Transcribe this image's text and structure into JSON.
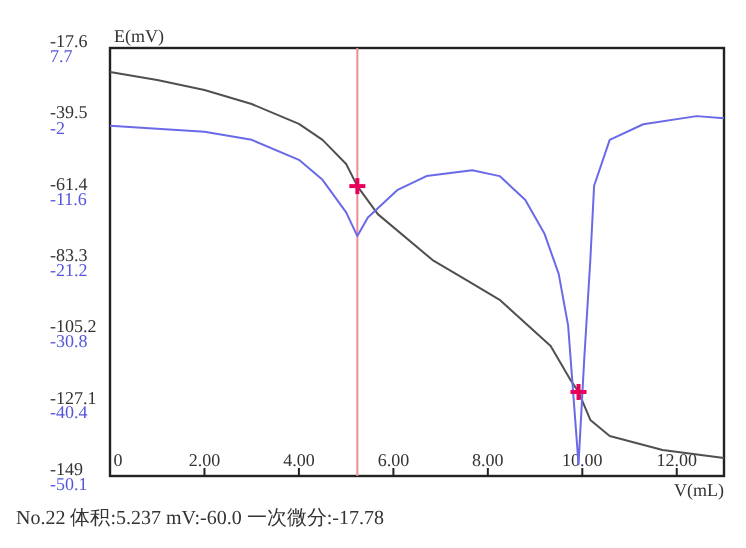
{
  "chart_data": {
    "type": "line",
    "xlabel": "V(mL)",
    "ylabel": "E(mV)",
    "xlim": [
      0,
      13
    ],
    "xticks": [
      {
        "value": 0,
        "label": "0"
      },
      {
        "value": 2,
        "label": "2.00"
      },
      {
        "value": 4,
        "label": "4.00"
      },
      {
        "value": 6,
        "label": "6.00"
      },
      {
        "value": 8,
        "label": "8.00"
      },
      {
        "value": 10,
        "label": "10.00"
      },
      {
        "value": 12,
        "label": "12.00"
      }
    ],
    "ylim": [
      -149.0,
      -17.6
    ],
    "yticks": [
      -17.6,
      -39.5,
      -61.4,
      -83.3,
      -105.2,
      -127.1,
      -149.0
    ],
    "y2lim": [
      -50.1,
      7.7
    ],
    "y2ticks": [
      7.7,
      -2.0,
      -11.6,
      -21.2,
      -30.8,
      -40.4,
      -50.1
    ],
    "series": [
      {
        "color": "#505050",
        "x": [
          0,
          1,
          2,
          3,
          4,
          4.5,
          5,
          5.237,
          5.67,
          6.83,
          7.54,
          8.25,
          9.33,
          9.75,
          9.92,
          10.17,
          10.58,
          11.7,
          13.0
        ],
        "values": [
          -25.0,
          -27.4,
          -30.5,
          -34.8,
          -40.9,
          -45.8,
          -53.2,
          -60.0,
          -68.6,
          -82.7,
          -88.8,
          -94.9,
          -109.1,
          -119.5,
          -123.2,
          -131.8,
          -136.7,
          -141.0,
          -143.5
        ]
      },
      {
        "axis": "y2",
        "color": "#6a6ae8",
        "x": [
          0,
          2,
          3,
          4,
          4.5,
          5,
          5.237,
          5.46,
          6.08,
          6.7,
          7.67,
          8.25,
          8.79,
          9.2,
          9.5,
          9.7,
          9.92,
          10.04,
          10.17,
          10.25,
          10.58,
          11.29,
          12.42,
          13.0
        ],
        "values": [
          -2.8,
          -3.6,
          -4.7,
          -7.4,
          -10.1,
          -14.5,
          -17.7,
          -15.2,
          -11.5,
          -9.6,
          -8.8,
          -9.6,
          -12.8,
          -17.4,
          -22.8,
          -29.8,
          -48.5,
          -34.4,
          -20.9,
          -10.9,
          -4.7,
          -2.6,
          -1.5,
          -1.8
        ]
      },
      {
        "type": "scatter",
        "marker": "cross",
        "color": "#e8005a",
        "x": [
          5.237,
          9.92
        ],
        "values": [
          -60.0,
          -123.2
        ]
      }
    ],
    "ref_lines": [
      {
        "axis": "x",
        "value": 5.237,
        "color": "#f08c96"
      }
    ],
    "annotations": [
      "No.22  体积:5.237  mV:-60.0  一次微分:-17.78"
    ]
  }
}
